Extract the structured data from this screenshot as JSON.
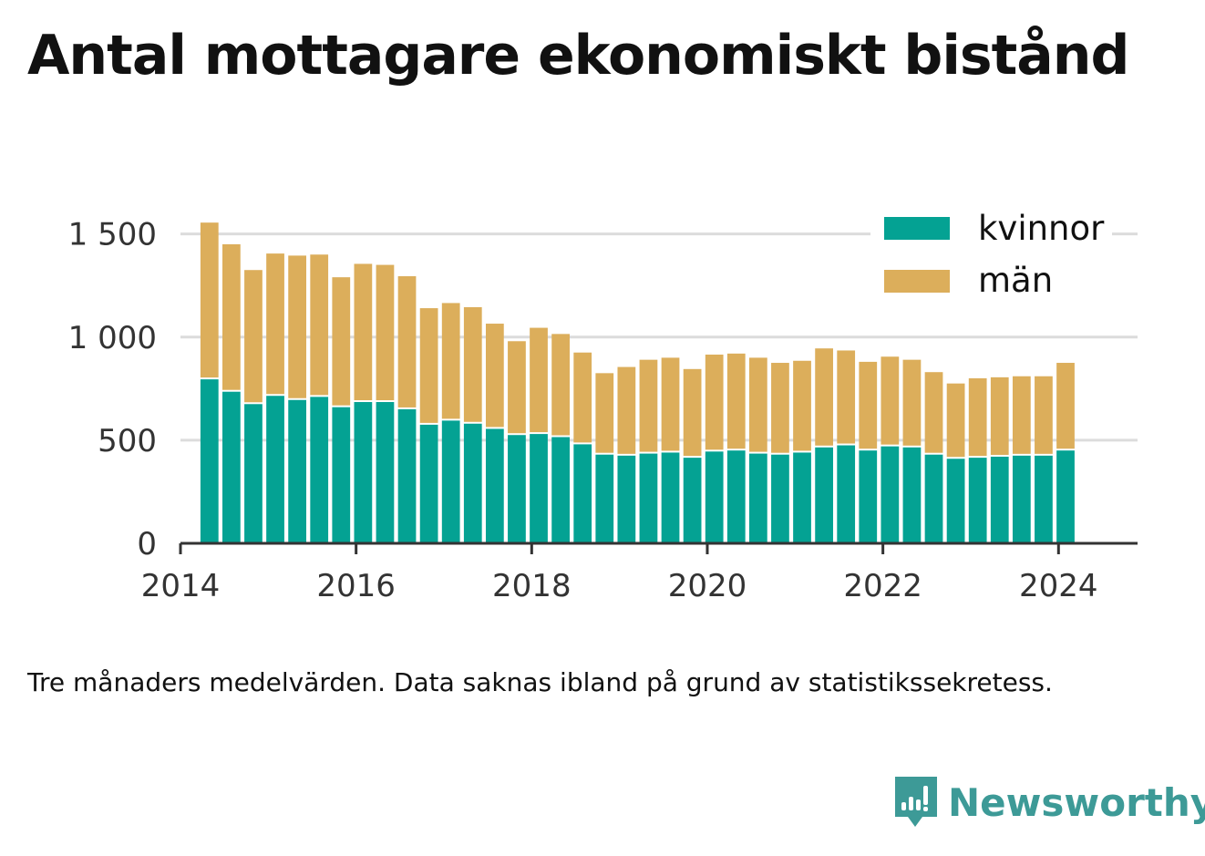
{
  "page": {
    "title": "Antal mottagare ekonomiskt bistånd"
  },
  "note": "Tre månaders medelvärden. Data saknas ibland på grund av statistikssekretess.",
  "brand": {
    "name": "Newsworthy",
    "icon": "newsworthy-logo-icon"
  },
  "colors": {
    "kvinnor": "#04a293",
    "man": "#dcae5b",
    "grid": "#dcdcdc",
    "axis": "#333333",
    "text": "#333333"
  },
  "chart_data": {
    "type": "bar",
    "stacked": true,
    "xlim": [
      2014,
      2024.9
    ],
    "ylim": [
      0,
      1600
    ],
    "y_ticks": [
      {
        "value": 0,
        "label": "0"
      },
      {
        "value": 500,
        "label": "500"
      },
      {
        "value": 1000,
        "label": "1 000"
      },
      {
        "value": 1500,
        "label": "1 500"
      }
    ],
    "x_ticks": [
      {
        "value": 2014,
        "label": "2014"
      },
      {
        "value": 2016,
        "label": "2016"
      },
      {
        "value": 2018,
        "label": "2018"
      },
      {
        "value": 2020,
        "label": "2020"
      },
      {
        "value": 2022,
        "label": "2022"
      },
      {
        "value": 2024,
        "label": "2024"
      }
    ],
    "grid": true,
    "legend_position": "top-right",
    "x": [
      2014.33,
      2014.58,
      2014.83,
      2015.08,
      2015.33,
      2015.58,
      2015.83,
      2016.08,
      2016.33,
      2016.58,
      2016.83,
      2017.08,
      2017.33,
      2017.58,
      2017.83,
      2018.08,
      2018.33,
      2018.58,
      2018.83,
      2019.08,
      2019.33,
      2019.58,
      2019.83,
      2020.08,
      2020.33,
      2020.58,
      2020.83,
      2021.08,
      2021.33,
      2021.58,
      2021.83,
      2022.08,
      2022.33,
      2022.58,
      2022.83,
      2023.08,
      2023.33,
      2023.58,
      2023.83,
      2024.08
    ],
    "series": [
      {
        "name": "kvinnor",
        "values": [
          795,
          735,
          675,
          715,
          695,
          710,
          660,
          685,
          685,
          650,
          575,
          595,
          580,
          555,
          525,
          530,
          515,
          480,
          430,
          425,
          435,
          440,
          415,
          445,
          450,
          435,
          430,
          440,
          465,
          475,
          450,
          470,
          465,
          430,
          410,
          415,
          420,
          425,
          425,
          450
        ]
      },
      {
        "name": "män",
        "values": [
          760,
          715,
          650,
          690,
          700,
          690,
          630,
          670,
          665,
          645,
          565,
          570,
          565,
          510,
          455,
          515,
          500,
          445,
          395,
          430,
          455,
          460,
          430,
          470,
          470,
          465,
          445,
          445,
          480,
          460,
          430,
          435,
          425,
          400,
          365,
          385,
          385,
          385,
          385,
          425
        ]
      }
    ]
  }
}
